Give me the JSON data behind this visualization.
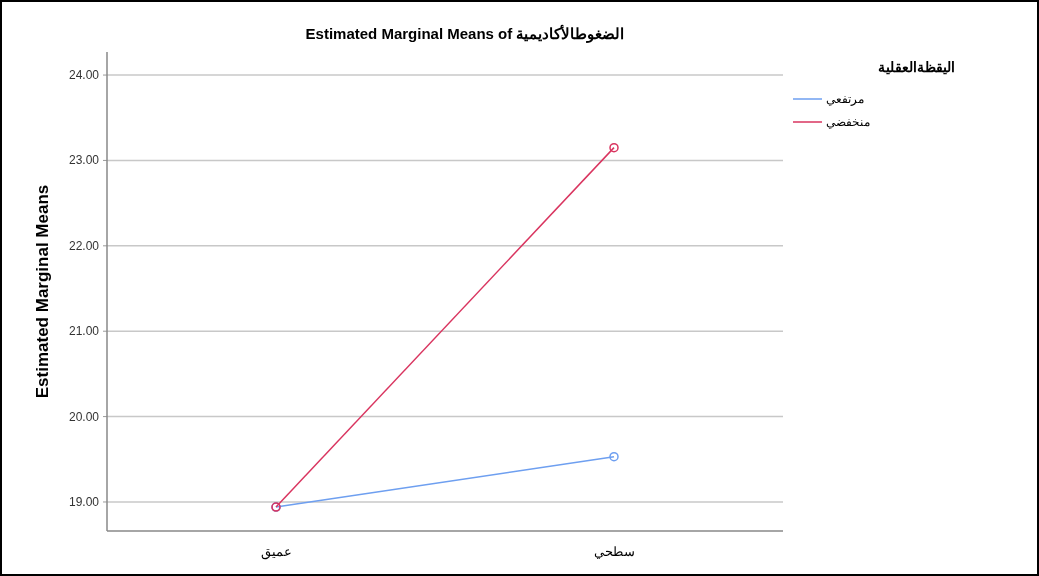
{
  "chart_data": {
    "type": "line",
    "title": "Estimated Marginal Means of الضغوطالأكاديمية",
    "ylabel": "Estimated Marginal Means",
    "legend_title": "اليقظةالعقلية",
    "categories": [
      "عميق",
      "سطحي"
    ],
    "series": [
      {
        "name": "مرتفعي",
        "color": "#6e9ff0",
        "values": [
          18.94,
          19.53
        ]
      },
      {
        "name": "منخفضي",
        "color": "#d9345f",
        "values": [
          18.94,
          23.15
        ]
      }
    ],
    "ylim": [
      18.66,
      24.27
    ],
    "yticks": [
      {
        "value": 19,
        "label": "19.00"
      },
      {
        "value": 20,
        "label": "20.00"
      },
      {
        "value": 21,
        "label": "21.00"
      },
      {
        "value": 22,
        "label": "22.00"
      },
      {
        "value": 23,
        "label": "23.00"
      },
      {
        "value": 24,
        "label": "24.00"
      }
    ],
    "grid": "y",
    "legend": "top right",
    "marker": "circle"
  }
}
